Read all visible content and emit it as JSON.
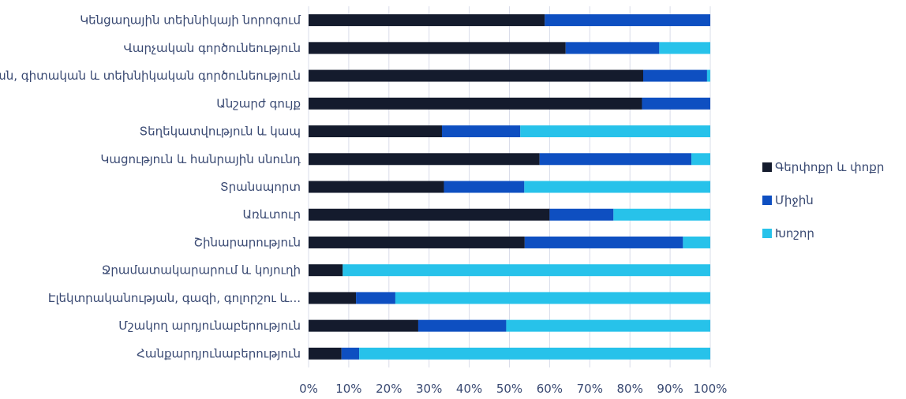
{
  "chart_data": {
    "type": "bar",
    "orientation": "horizontal",
    "stacked": "percent",
    "categories": [
      "Կենցաղային տեխնիկայի նորոգում",
      "Վարչական գործունեություն",
      "Մասնագիտական, գիտական և տեխնիկական գործունեություն",
      "Անշարժ գույք",
      "Տեղեկատվություն և կապ",
      "Կացություն և հանրային սնունդ",
      "Տրանսպորտ",
      "Առևտուր",
      "Շինարարություն",
      "Ջրամատակարարում և կոյուղի",
      "Էլեկտրականության, գազի, գոլորշու և...",
      "Մշակող արդյունաբերություն",
      "Հանքարդյունաբերություն"
    ],
    "series": [
      {
        "name": "Գերփոքր և փոքր",
        "color": "#141b2d",
        "values": [
          58.8,
          64.0,
          83.3,
          83.0,
          33.2,
          57.5,
          33.7,
          60.0,
          53.8,
          8.5,
          11.8,
          27.3,
          8.2
        ]
      },
      {
        "name": "Միջին",
        "color": "#0e4fc1",
        "values": [
          41.2,
          23.3,
          15.9,
          17.0,
          19.5,
          37.8,
          20.0,
          15.9,
          39.4,
          0.0,
          9.8,
          21.9,
          4.4
        ]
      },
      {
        "name": "Խոշոր",
        "color": "#27c2ea",
        "values": [
          0.0,
          12.7,
          0.8,
          0.0,
          47.3,
          4.7,
          46.3,
          24.1,
          6.8,
          91.5,
          78.4,
          50.8,
          87.4
        ]
      }
    ],
    "x_ticks": [
      "0%",
      "10%",
      "20%",
      "30%",
      "40%",
      "50%",
      "60%",
      "70%",
      "80%",
      "90%",
      "100%"
    ],
    "xlim": [
      0,
      100
    ],
    "grid": true,
    "legend_position": "right"
  }
}
